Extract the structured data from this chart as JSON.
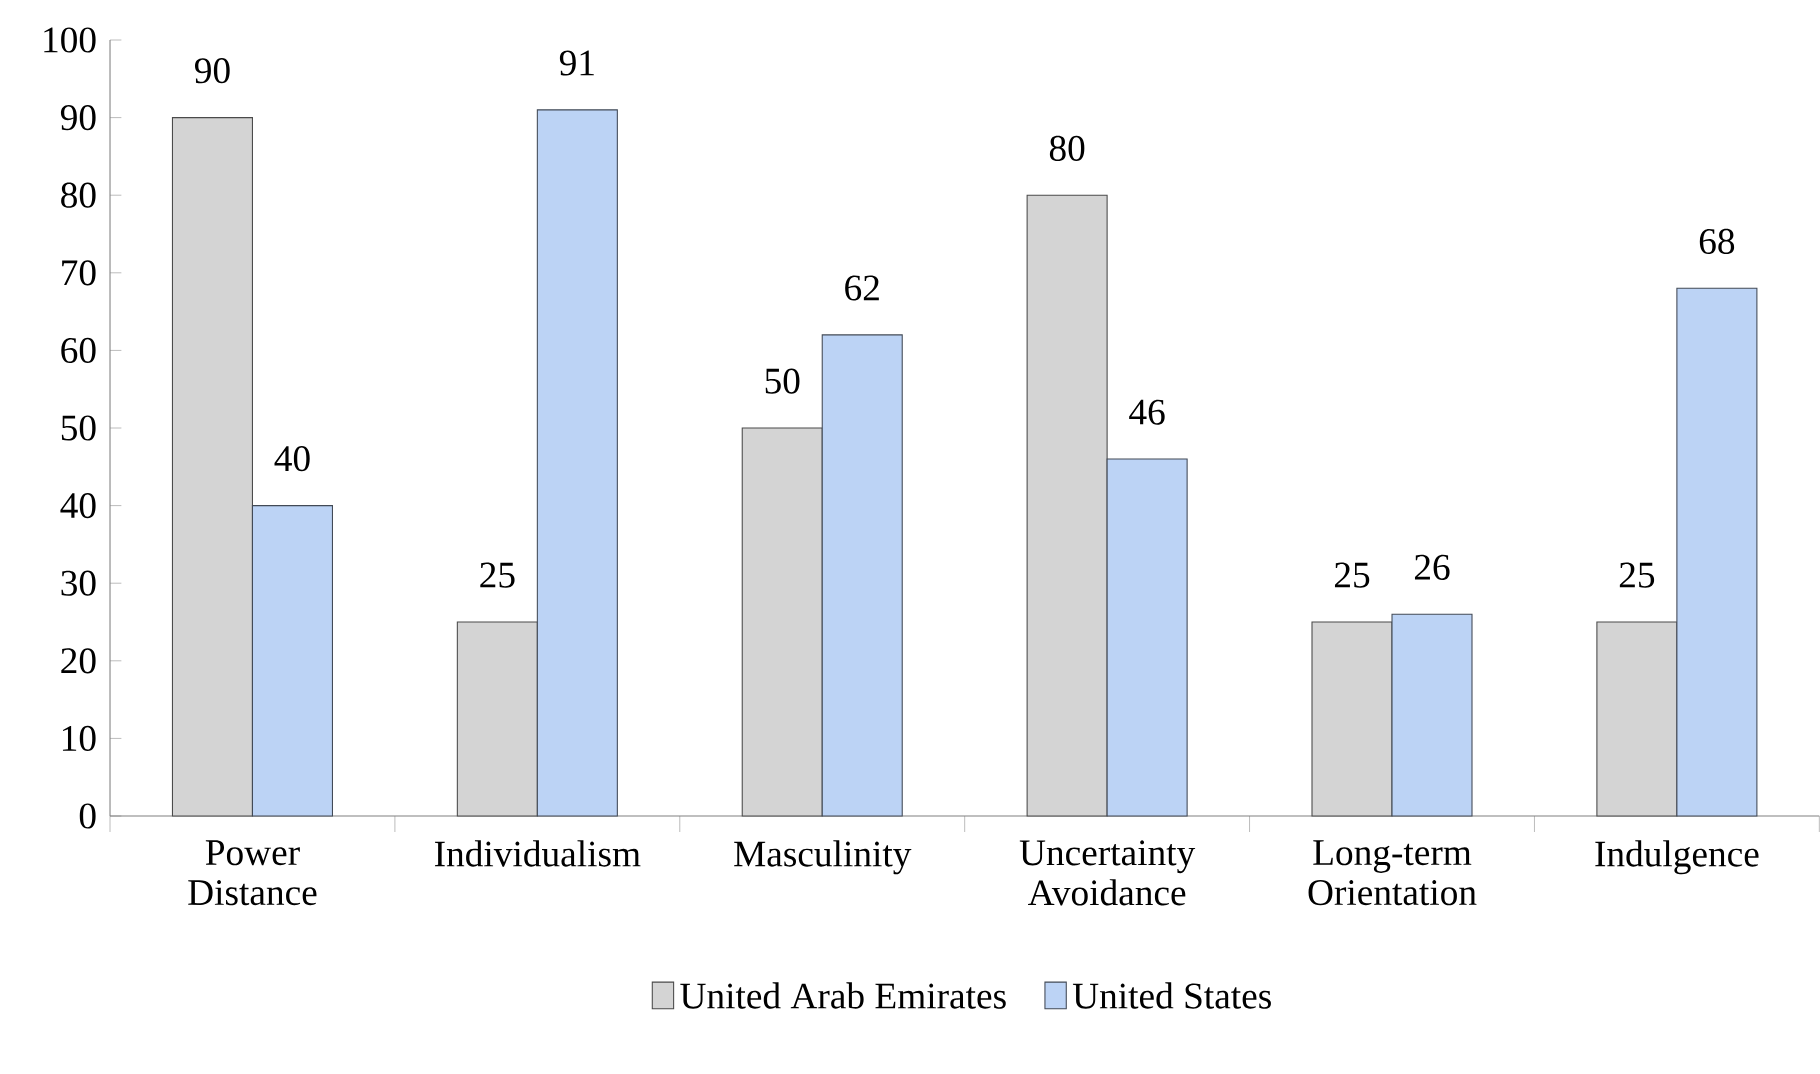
{
  "chart_data": {
    "type": "bar",
    "categories": [
      "Power Distance",
      "Individualism",
      "Masculinity",
      "Uncertainty Avoidance",
      "Long-term Orientation",
      "Indulgence"
    ],
    "series": [
      {
        "name": "United Arab Emirates",
        "color": "#d4d4d4",
        "values": [
          90,
          25,
          50,
          80,
          25,
          25
        ]
      },
      {
        "name": "United States",
        "color": "#bcd3f5",
        "values": [
          40,
          91,
          62,
          46,
          26,
          68
        ]
      }
    ],
    "ylim": [
      0,
      100
    ],
    "yticks": [
      0,
      10,
      20,
      30,
      40,
      50,
      60,
      70,
      80,
      90,
      100
    ],
    "data_labels": true,
    "grid": false,
    "legend": "bottom"
  }
}
